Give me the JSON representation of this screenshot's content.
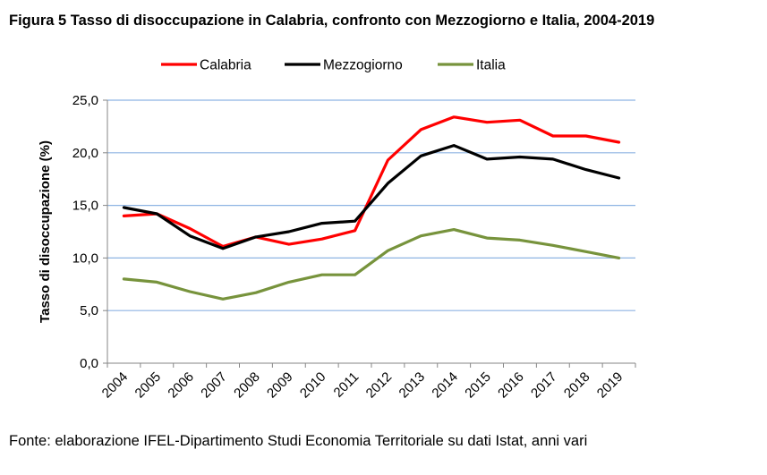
{
  "figure": {
    "title": "Figura 5 Tasso di disoccupazione in Calabria, confronto con Mezzogiorno e Italia, 2004-2019",
    "source": "Fonte: elaborazione IFEL-Dipartimento Studi Economia Territoriale su dati Istat, anni vari"
  },
  "chart_data": {
    "type": "line",
    "title": "",
    "xlabel": "",
    "ylabel": "Tasso di disoccupazione (%)",
    "categories": [
      "2004",
      "2005",
      "2006",
      "2007",
      "2008",
      "2009",
      "2010",
      "2011",
      "2012",
      "2013",
      "2014",
      "2015",
      "2016",
      "2017",
      "2018",
      "2019"
    ],
    "ylim": [
      0,
      25
    ],
    "yticks": [
      0,
      5,
      10,
      15,
      20,
      25
    ],
    "ytick_labels": [
      "0,0",
      "5,0",
      "10,0",
      "15,0",
      "20,0",
      "25,0"
    ],
    "grid": "horizontal",
    "legend_position": "top",
    "series": [
      {
        "name": "Calabria",
        "color": "#ff0000",
        "values": [
          14.0,
          14.2,
          12.8,
          11.1,
          12.0,
          11.3,
          11.8,
          12.6,
          19.3,
          22.2,
          23.4,
          22.9,
          23.1,
          21.6,
          21.6,
          21.0
        ]
      },
      {
        "name": "Mezzogiorno",
        "color": "#000000",
        "values": [
          14.8,
          14.2,
          12.1,
          10.9,
          12.0,
          12.5,
          13.3,
          13.5,
          17.1,
          19.7,
          20.7,
          19.4,
          19.6,
          19.4,
          18.4,
          17.6
        ]
      },
      {
        "name": "Italia",
        "color": "#77933c",
        "values": [
          8.0,
          7.7,
          6.8,
          6.1,
          6.7,
          7.7,
          8.4,
          8.4,
          10.7,
          12.1,
          12.7,
          11.9,
          11.7,
          11.2,
          10.6,
          10.0
        ]
      }
    ]
  }
}
